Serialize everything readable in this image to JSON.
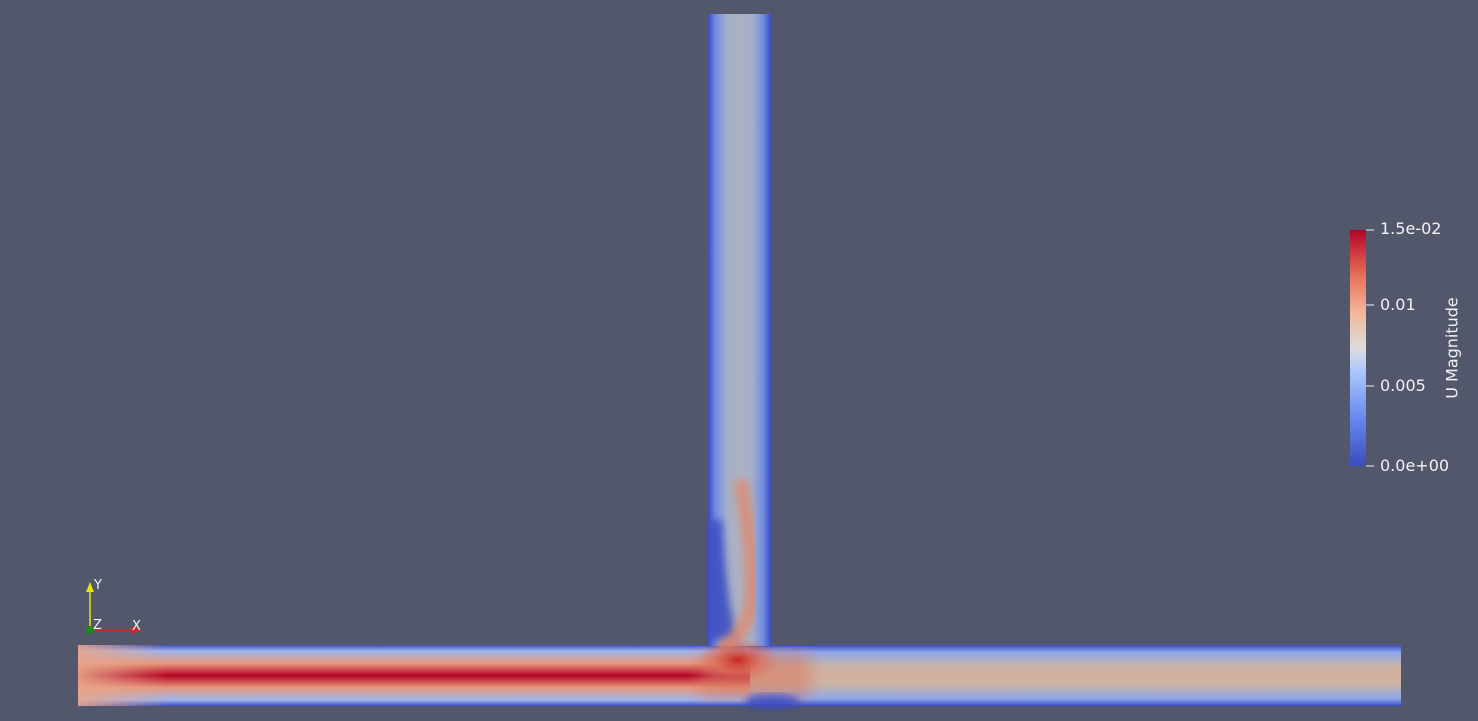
{
  "colorbar": {
    "title": "U Magnitude",
    "ticks": [
      "1.5e-02",
      "0.01",
      "0.005",
      "0.0e+00"
    ],
    "colors": {
      "low": "#3b4cc0",
      "mid": "#dddddd",
      "high": "#b40426"
    }
  },
  "orientation_axes": {
    "x_label": "X",
    "y_label": "Y",
    "z_label": "Z",
    "x_color": "#d62728",
    "y_color": "#e6e600",
    "z_color": "#1a8c1a"
  },
  "background_color": "#52576b"
}
